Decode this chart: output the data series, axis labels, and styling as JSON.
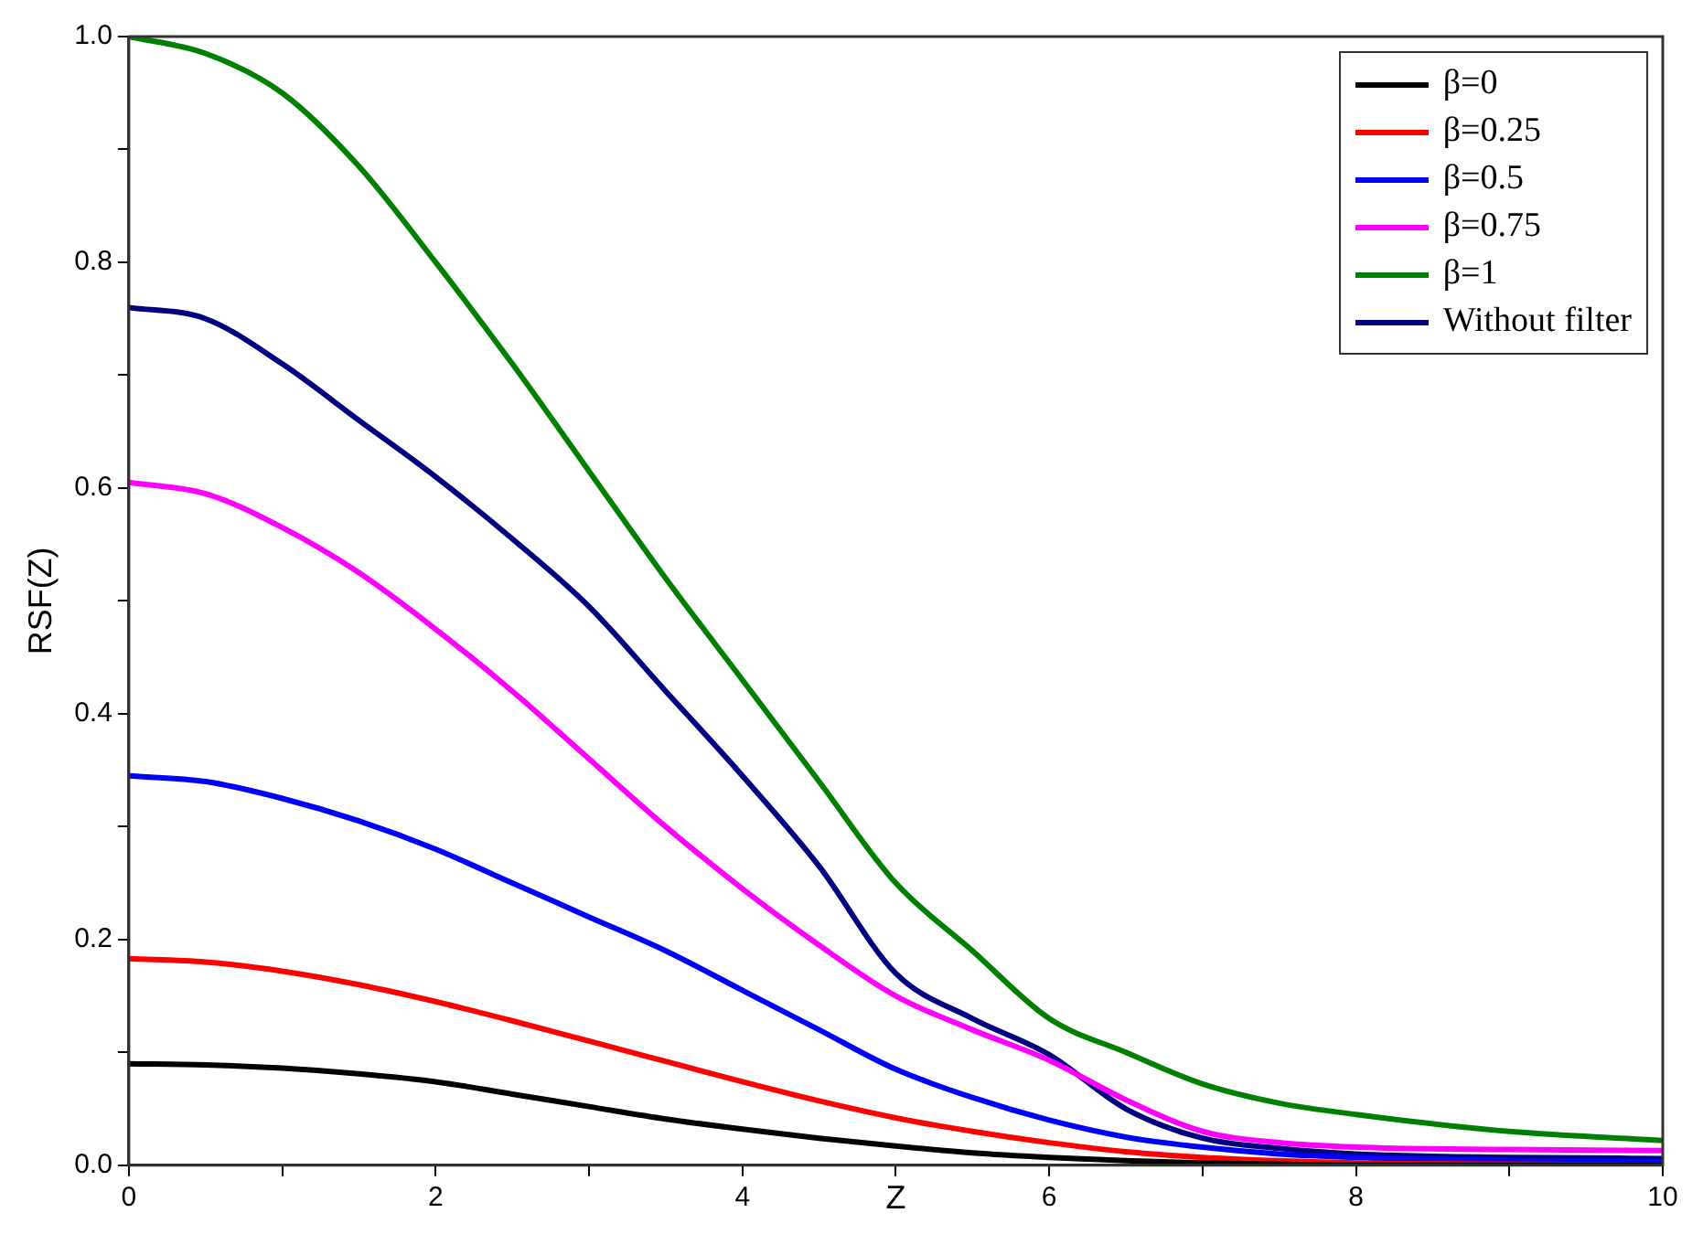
{
  "chart_data": {
    "type": "line",
    "xlabel": "Z",
    "ylabel": "RSF(Z)",
    "x": [
      0,
      0.5,
      1,
      1.5,
      2,
      2.5,
      3,
      3.5,
      4,
      4.5,
      5,
      5.5,
      6,
      6.5,
      7,
      7.5,
      8,
      9,
      10
    ],
    "series": [
      {
        "name": "β=0",
        "color": "#000000",
        "values": [
          0.09,
          0.089,
          0.086,
          0.081,
          0.074,
          0.063,
          0.052,
          0.041,
          0.032,
          0.024,
          0.017,
          0.011,
          0.007,
          0.004,
          0.002,
          0.001,
          0,
          0,
          0
        ]
      },
      {
        "name": "β=0.25",
        "color": "#ff0000",
        "values": [
          0.183,
          0.18,
          0.172,
          0.16,
          0.145,
          0.128,
          0.11,
          0.092,
          0.074,
          0.057,
          0.042,
          0.03,
          0.02,
          0.012,
          0.007,
          0.004,
          0.002,
          0.001,
          0
        ]
      },
      {
        "name": "β=0.5",
        "color": "#0000ff",
        "values": [
          0.345,
          0.34,
          0.325,
          0.305,
          0.28,
          0.25,
          0.22,
          0.19,
          0.155,
          0.12,
          0.085,
          0.06,
          0.04,
          0.025,
          0.016,
          0.01,
          0.007,
          0.004,
          0.003
        ]
      },
      {
        "name": "β=0.75",
        "color": "#ff00ff",
        "values": [
          0.605,
          0.595,
          0.565,
          0.525,
          0.475,
          0.42,
          0.36,
          0.3,
          0.245,
          0.195,
          0.15,
          0.12,
          0.093,
          0.058,
          0.03,
          0.02,
          0.016,
          0.014,
          0.013
        ]
      },
      {
        "name": "β=1",
        "color": "#008000",
        "values": [
          1,
          0.985,
          0.95,
          0.885,
          0.8,
          0.71,
          0.615,
          0.52,
          0.43,
          0.34,
          0.25,
          0.19,
          0.13,
          0.1,
          0.072,
          0.055,
          0.045,
          0.03,
          0.022
        ]
      },
      {
        "name": "Without filter",
        "color": "#000080",
        "values": [
          0.76,
          0.75,
          0.71,
          0.66,
          0.61,
          0.555,
          0.495,
          0.42,
          0.345,
          0.265,
          0.17,
          0.13,
          0.098,
          0.05,
          0.024,
          0.015,
          0.01,
          0.007,
          0.006
        ]
      }
    ],
    "xlim": [
      0,
      10
    ],
    "xticks": [
      0,
      {
        "value": 1,
        "label": null
      },
      2,
      {
        "value": 3,
        "label": null
      },
      4,
      {
        "value": 5,
        "label": null
      },
      6,
      {
        "value": 7,
        "label": null
      },
      8,
      {
        "value": 9,
        "label": null
      },
      10
    ],
    "ylim": [
      0,
      1
    ],
    "yticks": [
      {
        "value": 0,
        "label": "0.0"
      },
      {
        "value": 0.1,
        "label": null
      },
      0.2,
      {
        "value": 0.3,
        "label": null
      },
      0.4,
      {
        "value": 0.5,
        "label": null
      },
      0.6,
      {
        "value": 0.7,
        "label": null
      },
      0.8,
      {
        "value": 0.9,
        "label": null
      },
      {
        "value": 1,
        "label": "1.0"
      }
    ],
    "legend": "top right",
    "marker": "none",
    "line_style": "solid",
    "grid": false
  }
}
